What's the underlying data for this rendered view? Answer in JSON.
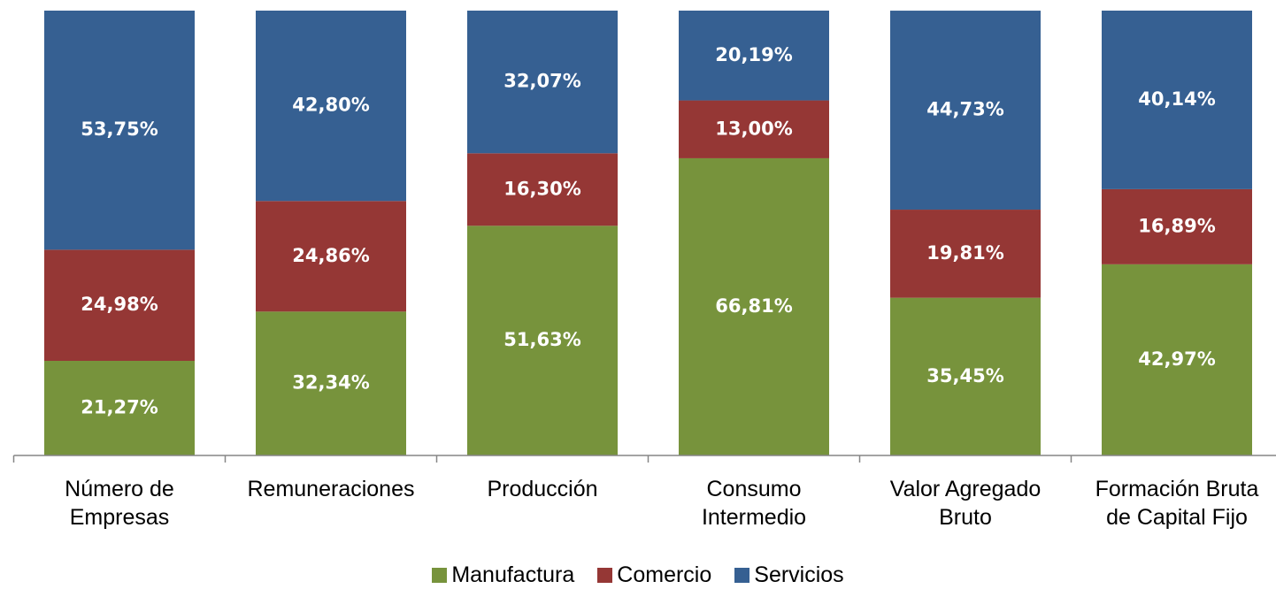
{
  "chart_data": {
    "type": "stacked_bar",
    "categories": [
      "Número de\nEmpresas",
      "Remuneraciones",
      "Producción",
      "Consumo\nIntermedio",
      "Valor Agregado\nBruto",
      "Formación Bruta\nde Capital Fijo"
    ],
    "series": [
      {
        "name": "Manufactura",
        "color": "#77933c",
        "values": [
          21.27,
          32.34,
          51.63,
          66.81,
          35.45,
          42.97
        ],
        "value_labels": [
          "21,27%",
          "32,34%",
          "51,63%",
          "66,81%",
          "35,45%",
          "42,97%"
        ]
      },
      {
        "name": "Comercio",
        "color": "#953735",
        "values": [
          24.98,
          24.86,
          16.3,
          13.0,
          19.81,
          16.89
        ],
        "value_labels": [
          "24,98%",
          "24,86%",
          "16,30%",
          "13,00%",
          "19,81%",
          "16,89%"
        ]
      },
      {
        "name": "Servicios",
        "color": "#366092",
        "values": [
          53.75,
          42.8,
          32.07,
          20.19,
          44.73,
          40.14
        ],
        "value_labels": [
          "53,75%",
          "42,80%",
          "32,07%",
          "20,19%",
          "44,73%",
          "40,14%"
        ]
      }
    ],
    "ylim": [
      0,
      100
    ],
    "legend": "bottom"
  }
}
